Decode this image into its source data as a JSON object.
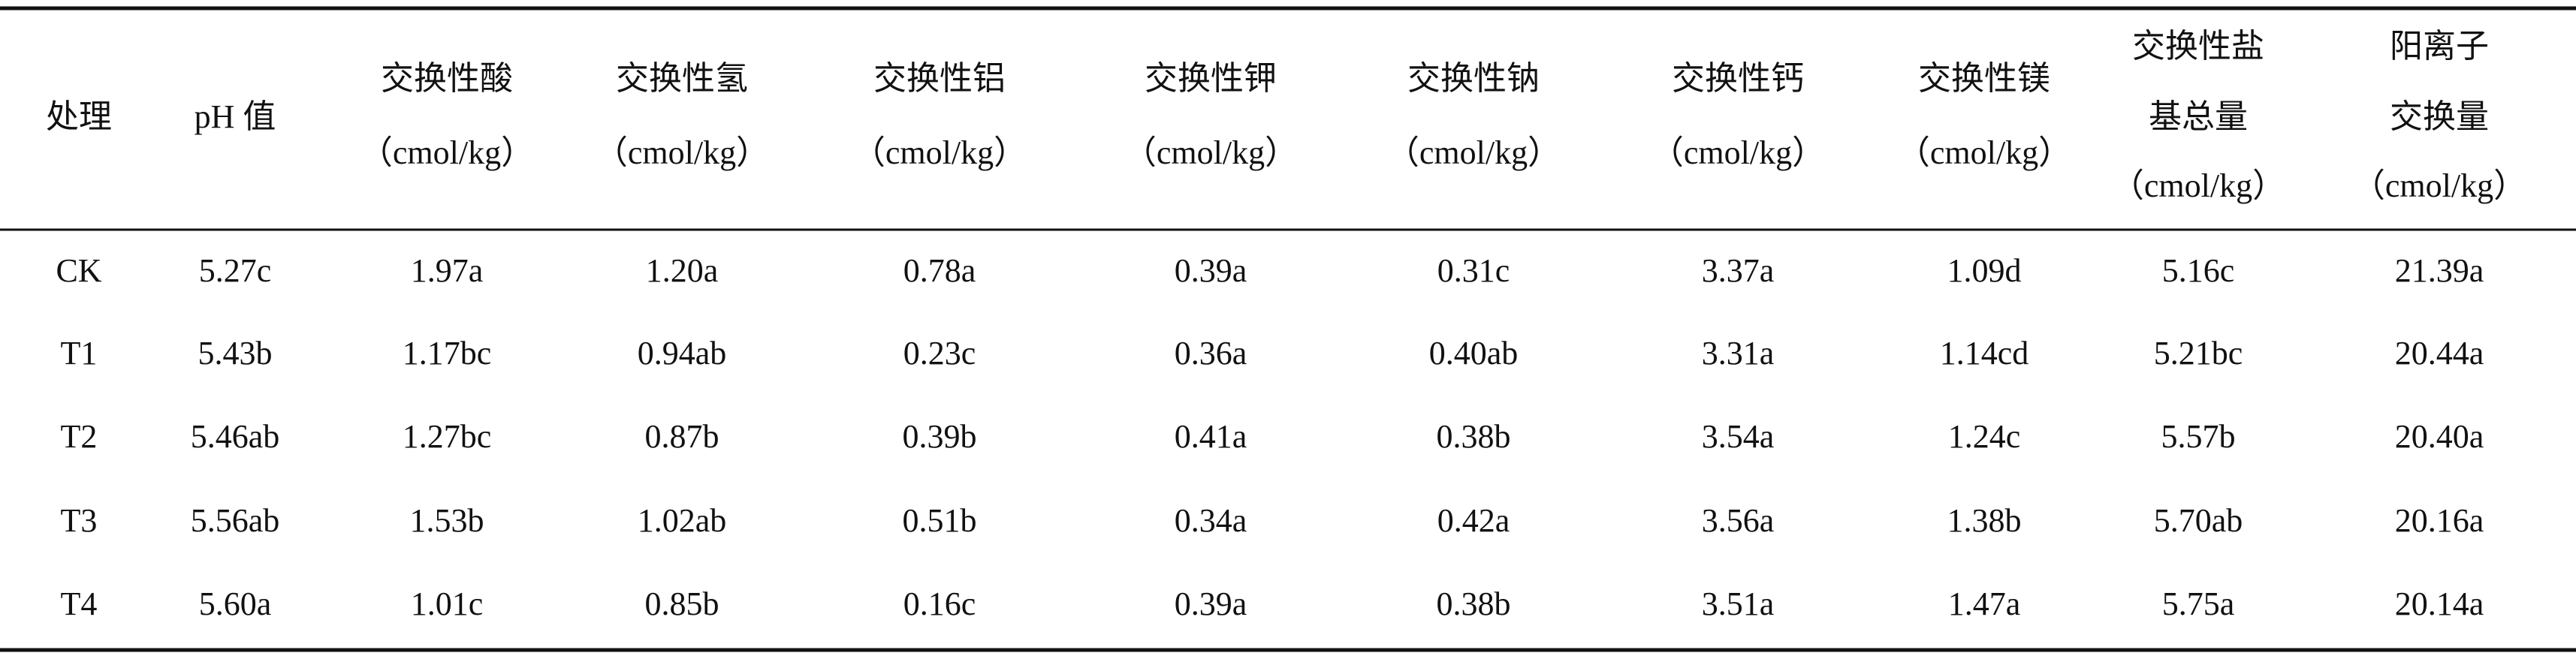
{
  "table": {
    "header": [
      [
        "处理"
      ],
      [
        "pH 值"
      ],
      [
        "交换性酸",
        "（cmol/kg）"
      ],
      [
        "交换性氢",
        "（cmol/kg）"
      ],
      [
        "交换性铝",
        "（cmol/kg）"
      ],
      [
        "交换性钾",
        "（cmol/kg）"
      ],
      [
        "交换性钠",
        "（cmol/kg）"
      ],
      [
        "交换性钙",
        "（cmol/kg）"
      ],
      [
        "交换性镁",
        "（cmol/kg）"
      ],
      [
        "交换性盐",
        "基总量",
        "（cmol/kg）"
      ],
      [
        "阳离子",
        "交换量",
        "（cmol/kg）"
      ]
    ],
    "rows": [
      [
        "CK",
        "5.27c",
        "1.97a",
        "1.20a",
        "0.78a",
        "0.39a",
        "0.31c",
        "3.37a",
        "1.09d",
        "5.16c",
        "21.39a"
      ],
      [
        "T1",
        "5.43b",
        "1.17bc",
        "0.94ab",
        "0.23c",
        "0.36a",
        "0.40ab",
        "3.31a",
        "1.14cd",
        "5.21bc",
        "20.44a"
      ],
      [
        "T2",
        "5.46ab",
        "1.27bc",
        "0.87b",
        "0.39b",
        "0.41a",
        "0.38b",
        "3.54a",
        "1.24c",
        "5.57b",
        "20.40a"
      ],
      [
        "T3",
        "5.56ab",
        "1.53b",
        "1.02ab",
        "0.51b",
        "0.34a",
        "0.42a",
        "3.56a",
        "1.38b",
        "5.70ab",
        "20.16a"
      ],
      [
        "T4",
        "5.60a",
        "1.01c",
        "0.85b",
        "0.16c",
        "0.39a",
        "0.38b",
        "3.51a",
        "1.47a",
        "5.75a",
        "20.14a"
      ]
    ]
  }
}
